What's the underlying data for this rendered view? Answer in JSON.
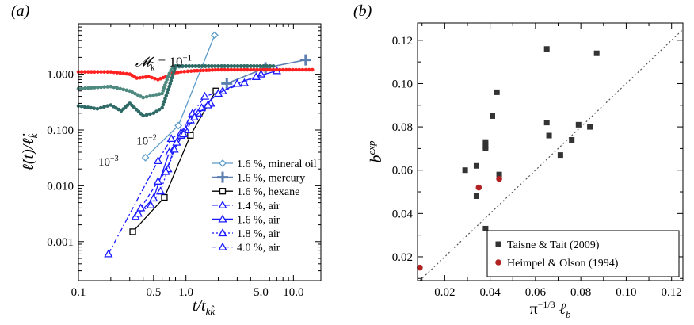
{
  "chart_data": [
    {
      "type": "line",
      "panel_label": "(a)",
      "xlabel": "t/t_{kk̂}",
      "ylabel": "ℓ̇(t)/ℓ̇_k̂",
      "xscale": "log",
      "yscale": "log",
      "xlim": [
        0.1,
        18
      ],
      "ylim": [
        0.0002,
        8
      ],
      "xticks": [
        0.1,
        0.5,
        1.0,
        5.0,
        10.0
      ],
      "xtick_labels": [
        "0.1",
        "0.5",
        "1.0",
        "5.0",
        "10.0"
      ],
      "yticks": [
        0.001,
        0.01,
        0.1,
        1.0
      ],
      "ytick_labels": [
        "0.001",
        "0.010",
        "0.100",
        "1.000"
      ],
      "legend_placement": "bottom-right",
      "annotations": [
        {
          "text": "M_k̂ = 10^−1",
          "parts": [
            "𝓜",
            "k̂",
            " = 10",
            "−1"
          ],
          "x": 0.62,
          "y": 1.4
        },
        {
          "text": "10^−2",
          "parts": [
            "10",
            "−2"
          ],
          "x": 0.43,
          "y": 0.055
        },
        {
          "text": "10^−3",
          "parts": [
            "10",
            "−3"
          ],
          "x": 0.19,
          "y": 0.023
        }
      ],
      "series": [
        {
          "name": "1.6 %, mineral oil",
          "color": "#5b9bc8",
          "marker": "diamond",
          "dash": "",
          "points": [
            [
              0.42,
              0.032
            ],
            [
              0.85,
              0.12
            ],
            [
              1.85,
              5.0
            ]
          ]
        },
        {
          "name": "1.6 %, mercury",
          "color": "#5a7fb0",
          "marker": "plus",
          "dash": "",
          "points": [
            [
              2.4,
              0.68
            ],
            [
              5.5,
              1.3
            ],
            [
              13.0,
              1.8
            ]
          ]
        },
        {
          "name": "1.6 %, hexane",
          "color": "#000000",
          "marker": "square",
          "dash": "",
          "points": [
            [
              0.32,
              0.0015
            ],
            [
              0.63,
              0.0062
            ],
            [
              1.1,
              0.08
            ],
            [
              1.9,
              0.5
            ]
          ]
        },
        {
          "name": "1.4 %, air",
          "color": "#1a1aff",
          "marker": "triangle",
          "dash": "7 3 2 3",
          "points": [
            [
              0.19,
              0.0006
            ],
            [
              0.55,
              0.028
            ],
            [
              0.73,
              0.07
            ],
            [
              0.9,
              0.09
            ],
            [
              1.15,
              0.2
            ],
            [
              1.5,
              0.4
            ],
            [
              2.2,
              0.5
            ],
            [
              3.5,
              0.7
            ],
            [
              5.0,
              1.0
            ]
          ]
        },
        {
          "name": "1.6 %, air",
          "color": "#1a1aff",
          "marker": "triangle",
          "dash": "",
          "points": [
            [
              0.34,
              0.0028
            ],
            [
              0.5,
              0.006
            ],
            [
              0.7,
              0.04
            ],
            [
              0.9,
              0.08
            ],
            [
              1.1,
              0.15
            ],
            [
              1.4,
              0.25
            ],
            [
              2.0,
              0.45
            ],
            [
              3.0,
              0.68
            ],
            [
              4.5,
              0.9
            ],
            [
              7.0,
              1.15
            ]
          ]
        },
        {
          "name": "1.8 %, air",
          "color": "#1a1aff",
          "marker": "triangle",
          "dash": "2 3",
          "points": [
            [
              0.36,
              0.0032
            ],
            [
              0.47,
              0.0045
            ],
            [
              0.58,
              0.008
            ],
            [
              0.68,
              0.02
            ],
            [
              0.82,
              0.06
            ],
            [
              1.0,
              0.1
            ],
            [
              1.3,
              0.2
            ],
            [
              1.7,
              0.3
            ]
          ]
        },
        {
          "name": "4.0 %, air",
          "color": "#1a1aff",
          "marker": "triangle",
          "dash": "5 3",
          "points": [
            [
              0.38,
              0.004
            ],
            [
              0.55,
              0.012
            ],
            [
              0.65,
              0.018
            ],
            [
              0.78,
              0.045
            ],
            [
              0.95,
              0.085
            ],
            [
              1.2,
              0.17
            ],
            [
              1.6,
              0.28
            ]
          ]
        },
        {
          "name": "",
          "color": "#ff2020",
          "marker": "dot",
          "dash": "",
          "points": [
            [
              0.1,
              1.1
            ],
            [
              0.2,
              1.1
            ],
            [
              0.3,
              1.0
            ],
            [
              0.35,
              0.85
            ],
            [
              0.45,
              0.9
            ],
            [
              0.55,
              0.8
            ],
            [
              0.65,
              0.9
            ],
            [
              0.75,
              1.05
            ],
            [
              0.9,
              1.1
            ],
            [
              1.2,
              1.15
            ],
            [
              2.0,
              1.2
            ],
            [
              4.0,
              1.2
            ],
            [
              8.0,
              1.2
            ],
            [
              15.0,
              1.2
            ]
          ]
        },
        {
          "name": "",
          "color": "#4f8a80",
          "marker": "dot",
          "dash": "",
          "points": [
            [
              0.1,
              0.55
            ],
            [
              0.2,
              0.6
            ],
            [
              0.3,
              0.5
            ],
            [
              0.4,
              0.38
            ],
            [
              0.5,
              0.42
            ],
            [
              0.6,
              0.45
            ],
            [
              0.68,
              0.9
            ],
            [
              0.75,
              1.35
            ],
            [
              1.0,
              1.38
            ],
            [
              2.0,
              1.38
            ],
            [
              4.0,
              1.38
            ],
            [
              6.5,
              1.38
            ]
          ]
        },
        {
          "name": "",
          "color": "#2f6b66",
          "marker": "dot",
          "dash": "",
          "points": [
            [
              0.1,
              0.27
            ],
            [
              0.15,
              0.24
            ],
            [
              0.2,
              0.28
            ],
            [
              0.25,
              0.22
            ],
            [
              0.3,
              0.3
            ],
            [
              0.4,
              0.18
            ],
            [
              0.5,
              0.2
            ],
            [
              0.6,
              0.25
            ],
            [
              0.7,
              0.6
            ],
            [
              0.8,
              1.4
            ],
            [
              1.0,
              1.4
            ],
            [
              2.0,
              1.4
            ],
            [
              4.0,
              1.4
            ],
            [
              6.5,
              1.4
            ]
          ]
        }
      ]
    },
    {
      "type": "scatter",
      "panel_label": "(b)",
      "xlabel": "π^{−1/3} ℓ_b",
      "ylabel": "b^{exp}",
      "xlim": [
        0.008,
        0.125
      ],
      "ylim": [
        0.009,
        0.128
      ],
      "xticks": [
        0.02,
        0.04,
        0.06,
        0.08,
        0.1,
        0.12
      ],
      "xtick_labels": [
        "0.02",
        "0.04",
        "0.06",
        "0.08",
        "0.10",
        "0.12"
      ],
      "yticks": [
        0.02,
        0.04,
        0.06,
        0.08,
        0.1,
        0.12
      ],
      "ytick_labels": [
        "0.02",
        "0.04",
        "0.06",
        "0.08",
        "0.10",
        "0.12"
      ],
      "reference_line": {
        "from": [
          0.008,
          0.008
        ],
        "to": [
          0.125,
          0.125
        ],
        "style": "dotted"
      },
      "legend_placement": "bottom-right",
      "series": [
        {
          "name": "Taisne & Tait (2009)",
          "color": "#333333",
          "marker": "square",
          "points": [
            [
              0.029,
              0.06
            ],
            [
              0.034,
              0.062
            ],
            [
              0.034,
              0.048
            ],
            [
              0.038,
              0.073
            ],
            [
              0.038,
              0.071
            ],
            [
              0.038,
              0.07
            ],
            [
              0.038,
              0.033
            ],
            [
              0.041,
              0.085
            ],
            [
              0.043,
              0.096
            ],
            [
              0.044,
              0.058
            ],
            [
              0.065,
              0.116
            ],
            [
              0.065,
              0.082
            ],
            [
              0.066,
              0.076
            ],
            [
              0.071,
              0.067
            ],
            [
              0.076,
              0.074
            ],
            [
              0.079,
              0.081
            ],
            [
              0.084,
              0.08
            ],
            [
              0.087,
              0.114
            ]
          ]
        },
        {
          "name": "Heimpel & Olson (1994)",
          "color": "#b22222",
          "marker": "circle",
          "points": [
            [
              0.009,
              0.015
            ],
            [
              0.035,
              0.052
            ],
            [
              0.044,
              0.056
            ]
          ]
        }
      ]
    }
  ]
}
